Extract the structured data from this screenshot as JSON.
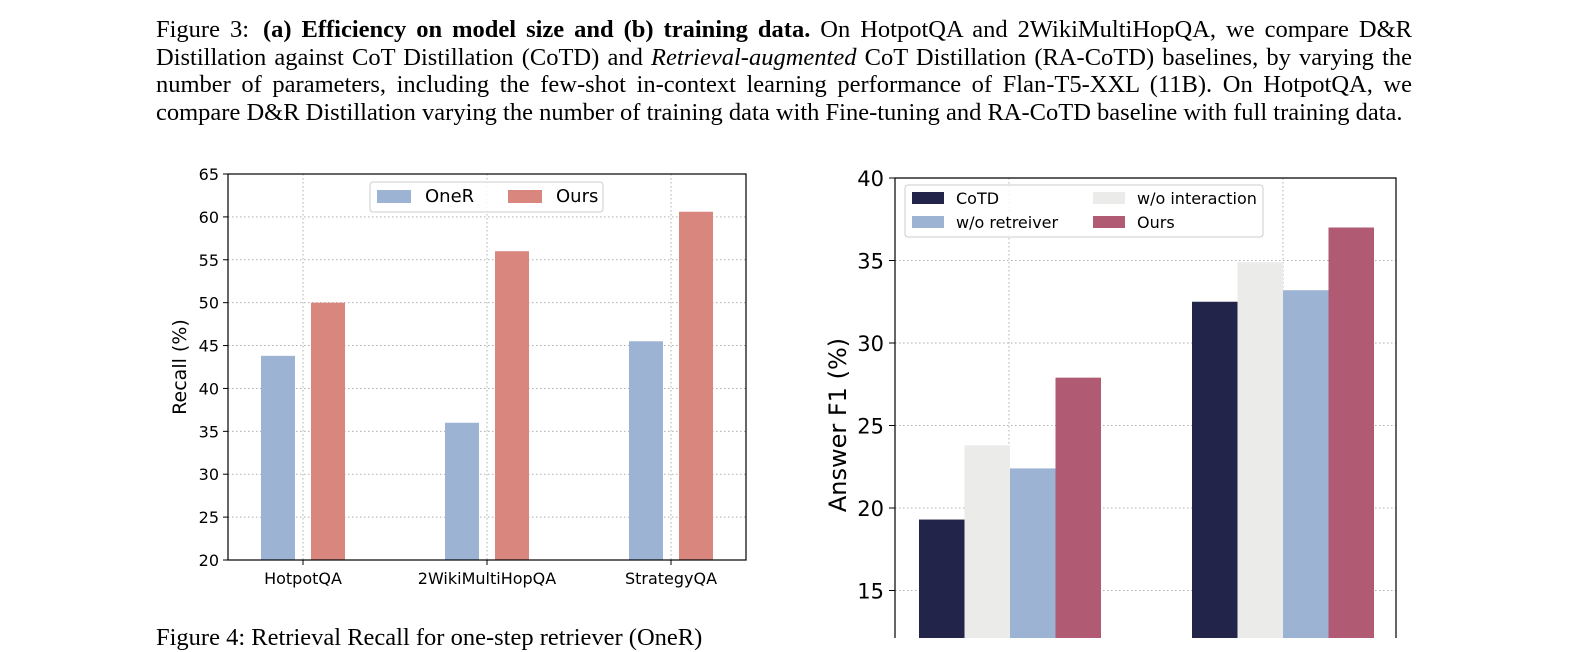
{
  "caption": {
    "label": "Figure 3:",
    "bold": "(a) Efficiency on model size and (b) training data.",
    "text1": " On HotpotQA and 2WikiMultiHopQA, we compare D&R Distillation against CoT Distillation (CoTD) and ",
    "italic": "Retrieval-augmented",
    "text2": " CoT Distillation (RA-CoTD) baselines, by varying the number of parameters, including the few-shot in-context learning performance of Flan-T5-XXL (11B). On HotpotQA, we compare D&R Distillation varying the number of training data with Fine-tuning and RA-CoTD baseline with full training data."
  },
  "figure4_caption_partial": "Figure 4: Retrieval Recall for one-step retriever (OneR)",
  "chart_data": [
    {
      "type": "bar",
      "title": "",
      "xlabel": "",
      "ylabel": "Recall (%)",
      "ylim": [
        20,
        65
      ],
      "yticks": [
        "20",
        "25",
        "30",
        "35",
        "40",
        "45",
        "50",
        "55",
        "60",
        "65"
      ],
      "ytick_values": [
        20,
        25,
        30,
        35,
        40,
        45,
        50,
        55,
        60,
        65
      ],
      "categories": [
        "HotpotQA",
        "2WikiMultiHopQA",
        "StrategyQA"
      ],
      "grid": true,
      "legend_position": "top-center",
      "series": [
        {
          "name": "OneR",
          "color": "#9db3d4",
          "values": [
            43.8,
            36.0,
            45.5
          ]
        },
        {
          "name": "Ours",
          "color": "#d9867e",
          "values": [
            50.0,
            56.0,
            60.6
          ]
        }
      ]
    },
    {
      "type": "bar",
      "title": "",
      "xlabel": "",
      "ylabel": "Answer F1 (%)",
      "ylim": [
        10,
        40
      ],
      "yticks": [
        "15",
        "20",
        "25",
        "30",
        "35",
        "40"
      ],
      "ytick_values": [
        15,
        20,
        25,
        30,
        35,
        40
      ],
      "groups": 2,
      "grid": true,
      "legend_position": "top-left",
      "series": [
        {
          "name": "CoTD",
          "color": "#23244a",
          "values": [
            19.3,
            32.5
          ]
        },
        {
          "name": "w/o interaction",
          "color": "#ebebea",
          "values": [
            23.8,
            34.9
          ]
        },
        {
          "name": "w/o retreiver",
          "color": "#9db3d4",
          "values": [
            22.4,
            33.2
          ]
        },
        {
          "name": "Ours",
          "color": "#b05a74",
          "values": [
            27.9,
            37.0
          ]
        }
      ]
    }
  ]
}
